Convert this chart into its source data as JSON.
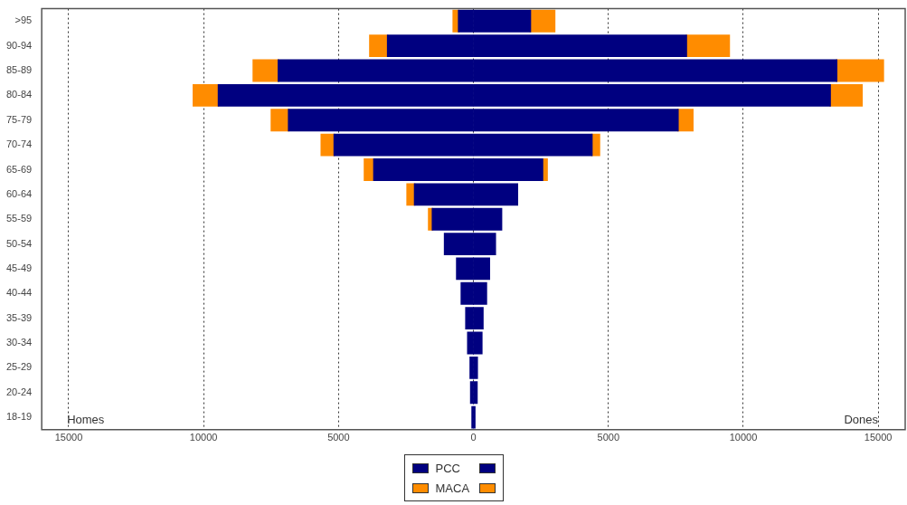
{
  "chart_data": {
    "type": "bar",
    "orientation": "horizontal",
    "stacked": true,
    "categories": [
      ">95",
      "90-94",
      "85-89",
      "80-84",
      "75-79",
      "70-74",
      "65-69",
      "60-64",
      "55-59",
      "50-54",
      "45-49",
      "40-44",
      "35-39",
      "30-34",
      "25-29",
      "20-24",
      "18-19"
    ],
    "series": [
      {
        "name": "PCC",
        "color": "#000080",
        "values": [
          -550,
          -3180,
          -7230,
          -9450,
          -6850,
          -5160,
          -3690,
          -2180,
          -1520,
          -1070,
          -620,
          -450,
          -280,
          -210,
          -120,
          -100,
          -50
        ]
      },
      {
        "name": "MACA",
        "color": "#ff8c00",
        "values": [
          -200,
          -660,
          -930,
          -930,
          -640,
          -480,
          -350,
          -280,
          -140,
          null,
          null,
          null,
          null,
          null,
          null,
          null,
          null
        ]
      },
      {
        "color": "#000080",
        "values": [
          2110,
          7890,
          13460,
          13220,
          7580,
          4390,
          2560,
          1630,
          1040,
          810,
          590,
          480,
          350,
          310,
          140,
          130,
          50
        ]
      },
      {
        "color": "#ff8c00",
        "values": [
          900,
          1590,
          1730,
          1180,
          550,
          280,
          170,
          null,
          null,
          null,
          null,
          null,
          null,
          null,
          null,
          null,
          null
        ]
      }
    ],
    "xlim": [
      -16000,
      16000
    ],
    "xticks": [
      {
        "value": -15000,
        "label": "15000"
      },
      {
        "value": -10000,
        "label": "10000"
      },
      {
        "value": -5000,
        "label": "5000"
      },
      0,
      5000,
      10000,
      15000
    ],
    "grid": "x",
    "legend": "bottom",
    "annotations": [
      "Homes",
      "Dones"
    ]
  }
}
